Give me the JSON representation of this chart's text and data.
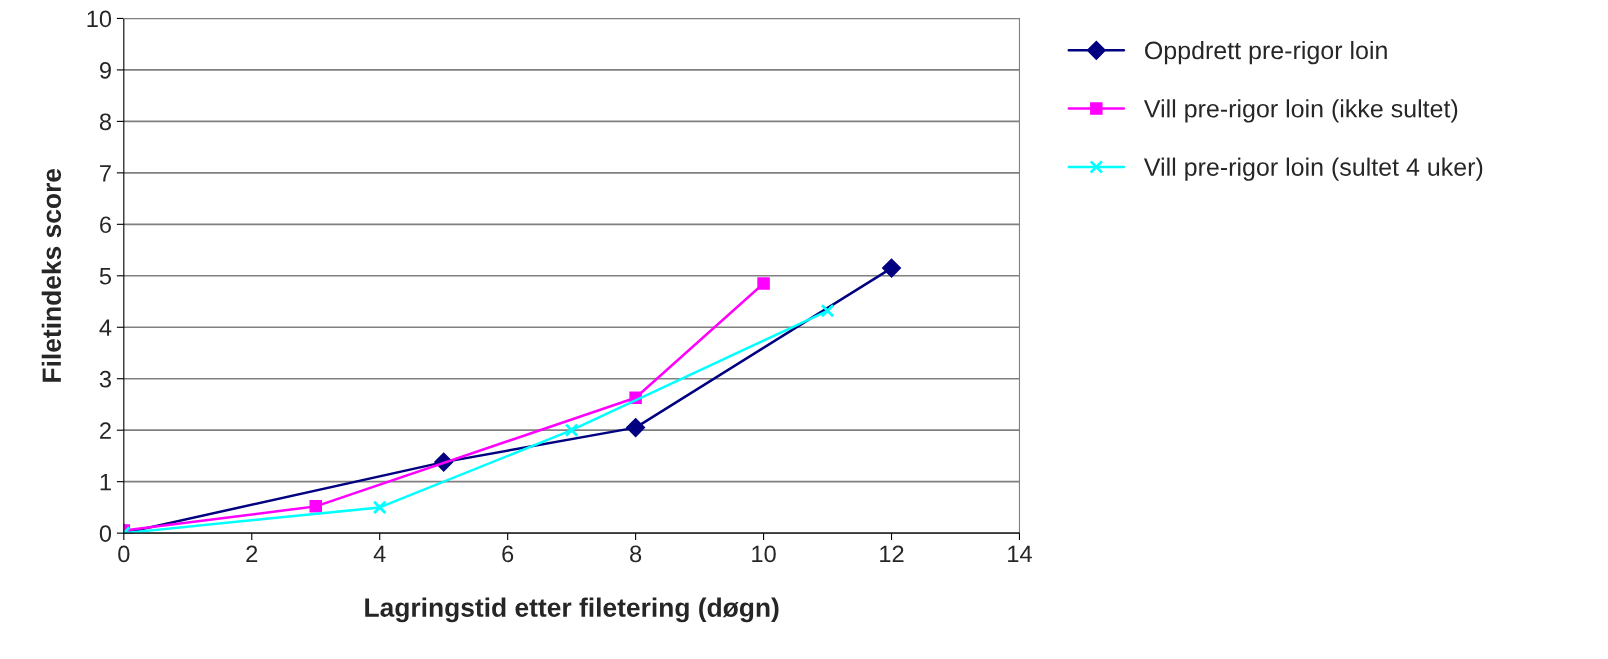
{
  "chart_data": {
    "type": "line",
    "xlabel": "Lagringstid etter filetering (døgn)",
    "ylabel": "Filetindeks score",
    "series": [
      {
        "name": "Oppdrett pre-rigor loin",
        "color": "#000080",
        "marker": "diamond",
        "x": [
          0,
          5,
          8,
          12
        ],
        "values": [
          0,
          1.38,
          2.05,
          5.15
        ]
      },
      {
        "name": "Vill pre-rigor loin (ikke sultet)",
        "color": "#ff00ff",
        "marker": "square",
        "x": [
          0,
          3,
          8,
          10
        ],
        "values": [
          0.05,
          0.52,
          2.63,
          4.85
        ]
      },
      {
        "name": "Vill pre-rigor loin (sultet 4 uker)",
        "color": "#00ffff",
        "marker": "cross",
        "x": [
          0,
          4,
          7,
          11
        ],
        "values": [
          0,
          0.5,
          2.0,
          4.32
        ]
      }
    ],
    "xlim": [
      0,
      14
    ],
    "xticks": [
      0,
      2,
      4,
      6,
      8,
      10,
      12,
      14
    ],
    "ylim": [
      0,
      10
    ],
    "yticks": [
      0,
      1,
      2,
      3,
      4,
      5,
      6,
      7,
      8,
      9,
      10
    ],
    "grid": "y",
    "legend": "right"
  }
}
